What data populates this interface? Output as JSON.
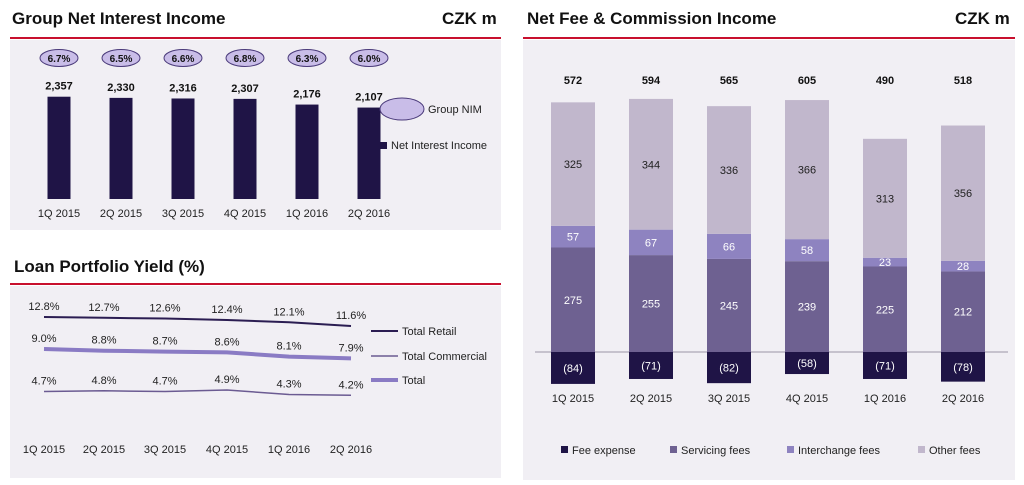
{
  "colors": {
    "nii_bar": "#1f1446",
    "nim_bubble_fill": "#c9bde8",
    "nim_bubble_stroke": "#4a3a7a",
    "fee_expense": "#1f1446",
    "servicing_fees": "#6e6191",
    "interchange_fees": "#8e83c0",
    "other_fees": "#c1b7cc",
    "retail_line": "#2b1d52",
    "commercial_line": "#6b5b92",
    "total_line": "#8a7bc4",
    "accent_red": "#c8102e"
  },
  "panels": {
    "nii": {
      "title": "Group Net Interest Income",
      "unit": "CZK m",
      "legend": {
        "nim": "Group NIM",
        "nii": "Net Interest Income"
      }
    },
    "yield": {
      "title": "Loan Portfolio Yield (%)"
    },
    "fee": {
      "title": "Net Fee & Commission Income",
      "unit": "CZK m"
    }
  },
  "chart_data": [
    {
      "type": "bar",
      "title": "Group Net Interest Income",
      "unit": "CZK m",
      "categories": [
        "1Q 2015",
        "2Q 2015",
        "3Q 2015",
        "4Q 2015",
        "1Q 2016",
        "2Q 2016"
      ],
      "series": [
        {
          "name": "Net Interest Income",
          "values": [
            2357,
            2330,
            2316,
            2307,
            2176,
            2107
          ],
          "labels": [
            "2,357",
            "2,330",
            "2,316",
            "2,307",
            "2,176",
            "2,107"
          ]
        },
        {
          "name": "Group NIM",
          "values": [
            6.7,
            6.5,
            6.6,
            6.8,
            6.3,
            6.0
          ],
          "labels": [
            "6.7%",
            "6.5%",
            "6.6%",
            "6.8%",
            "6.3%",
            "6.0%"
          ]
        }
      ],
      "ylim": [
        0,
        2700
      ],
      "legend_position": "right"
    },
    {
      "type": "line",
      "title": "Loan Portfolio Yield (%)",
      "categories": [
        "1Q 2015",
        "2Q 2015",
        "3Q 2015",
        "4Q 2015",
        "1Q 2016",
        "2Q 2016"
      ],
      "series": [
        {
          "name": "Total Retail",
          "values": [
            12.8,
            12.7,
            12.6,
            12.4,
            12.1,
            11.6
          ],
          "labels": [
            "12.8%",
            "12.7%",
            "12.6%",
            "12.4%",
            "12.1%",
            "11.6%"
          ]
        },
        {
          "name": "Total Commercial",
          "values": [
            4.7,
            4.8,
            4.7,
            4.9,
            4.3,
            4.2
          ],
          "labels": [
            "4.7%",
            "4.8%",
            "4.7%",
            "4.9%",
            "4.3%",
            "4.2%"
          ]
        },
        {
          "name": "Total",
          "values": [
            9.0,
            8.8,
            8.7,
            8.6,
            8.1,
            7.9
          ],
          "labels": [
            "9.0%",
            "8.8%",
            "8.7%",
            "8.6%",
            "8.1%",
            "7.9%"
          ]
        }
      ],
      "legend_position": "right"
    },
    {
      "type": "bar",
      "stacked": true,
      "title": "Net Fee & Commission Income",
      "unit": "CZK m",
      "categories": [
        "1Q 2015",
        "2Q 2015",
        "3Q 2015",
        "4Q 2015",
        "1Q 2016",
        "2Q 2016"
      ],
      "totals": [
        572,
        594,
        565,
        605,
        490,
        518
      ],
      "series": [
        {
          "name": "Fee expense",
          "values": [
            -84,
            -71,
            -82,
            -58,
            -71,
            -78
          ],
          "labels": [
            "(84)",
            "(71)",
            "(82)",
            "(58)",
            "(71)",
            "(78)"
          ]
        },
        {
          "name": "Servicing fees",
          "values": [
            275,
            255,
            245,
            239,
            225,
            212
          ],
          "labels": [
            "275",
            "255",
            "245",
            "239",
            "225",
            "212"
          ]
        },
        {
          "name": "Interchange fees",
          "values": [
            57,
            67,
            66,
            58,
            23,
            28
          ],
          "labels": [
            "57",
            "67",
            "66",
            "58",
            "23",
            "28"
          ]
        },
        {
          "name": "Other fees",
          "values": [
            325,
            344,
            336,
            366,
            313,
            356
          ],
          "labels": [
            "325",
            "344",
            "336",
            "366",
            "313",
            "356"
          ]
        }
      ],
      "legend_position": "bottom"
    }
  ]
}
